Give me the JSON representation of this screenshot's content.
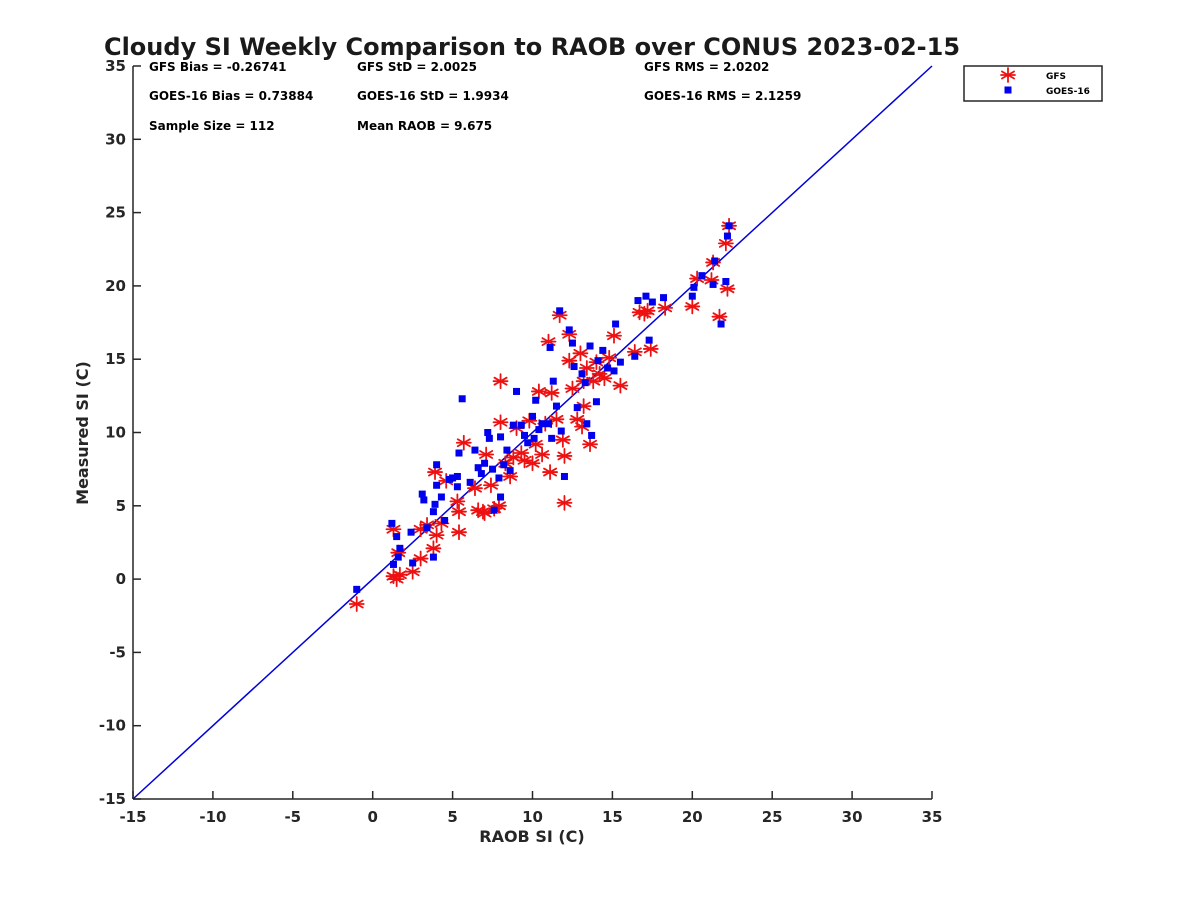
{
  "chart_data": {
    "type": "scatter",
    "title": "Cloudy SI Weekly Comparison to RAOB over CONUS 2023-02-15",
    "xlabel": "RAOB SI (C)",
    "ylabel": "Measured SI (C)",
    "xlim": [
      -15,
      35
    ],
    "ylim": [
      -15,
      35
    ],
    "xticks": [
      -15,
      -10,
      -5,
      0,
      5,
      10,
      15,
      20,
      25,
      30,
      35
    ],
    "yticks": [
      -15,
      -10,
      -5,
      0,
      5,
      10,
      15,
      20,
      25,
      30,
      35
    ],
    "grid": false,
    "legend_position": "outside top-right",
    "reference_line": {
      "x": [
        -15,
        35
      ],
      "y": [
        -15,
        35
      ],
      "color": "#0000dd"
    },
    "stats": {
      "gfs_bias": "GFS Bias = -0.26741",
      "gfs_std": "GFS StD = 2.0025",
      "gfs_rms": "GFS RMS = 2.0202",
      "goes_bias": "GOES-16 Bias = 0.73884",
      "goes_std": "GOES-16 StD = 1.9934",
      "goes_rms": "GOES-16 RMS = 2.1259",
      "sample_size": "Sample Size = 112",
      "mean_raob": "Mean RAOB = 9.675"
    },
    "series": [
      {
        "name": "GFS",
        "marker": "asterisk",
        "color": "#ee1111",
        "points": [
          [
            -1.0,
            -1.7
          ],
          [
            1.3,
            0.2
          ],
          [
            1.5,
            0.0
          ],
          [
            1.7,
            0.3
          ],
          [
            1.3,
            3.4
          ],
          [
            1.6,
            1.8
          ],
          [
            2.5,
            0.5
          ],
          [
            3.0,
            1.4
          ],
          [
            3.0,
            3.4
          ],
          [
            3.4,
            3.7
          ],
          [
            3.8,
            2.1
          ],
          [
            4.0,
            3.0
          ],
          [
            4.3,
            3.8
          ],
          [
            3.9,
            7.3
          ],
          [
            4.6,
            6.7
          ],
          [
            5.3,
            5.3
          ],
          [
            5.4,
            4.6
          ],
          [
            5.4,
            3.2
          ],
          [
            5.7,
            9.3
          ],
          [
            6.4,
            6.2
          ],
          [
            6.6,
            4.7
          ],
          [
            6.9,
            4.6
          ],
          [
            7.0,
            4.5
          ],
          [
            7.1,
            8.5
          ],
          [
            7.4,
            6.4
          ],
          [
            7.6,
            4.8
          ],
          [
            7.9,
            5.0
          ],
          [
            8.0,
            10.7
          ],
          [
            8.0,
            13.5
          ],
          [
            8.3,
            7.9
          ],
          [
            8.6,
            7.0
          ],
          [
            8.8,
            8.3
          ],
          [
            9.0,
            10.3
          ],
          [
            9.3,
            8.6
          ],
          [
            9.5,
            8.1
          ],
          [
            9.8,
            10.8
          ],
          [
            10.0,
            7.9
          ],
          [
            10.2,
            9.2
          ],
          [
            10.4,
            12.8
          ],
          [
            10.6,
            8.5
          ],
          [
            10.8,
            10.6
          ],
          [
            11.0,
            16.2
          ],
          [
            11.1,
            7.3
          ],
          [
            11.2,
            12.7
          ],
          [
            11.5,
            10.9
          ],
          [
            11.7,
            18.0
          ],
          [
            11.9,
            9.5
          ],
          [
            12.0,
            5.2
          ],
          [
            12.0,
            8.4
          ],
          [
            12.3,
            16.7
          ],
          [
            12.3,
            14.9
          ],
          [
            12.5,
            13.0
          ],
          [
            12.8,
            10.9
          ],
          [
            13.0,
            15.4
          ],
          [
            13.1,
            10.4
          ],
          [
            13.2,
            11.8
          ],
          [
            13.2,
            13.5
          ],
          [
            13.4,
            14.4
          ],
          [
            13.6,
            9.2
          ],
          [
            13.8,
            13.5
          ],
          [
            14.0,
            14.8
          ],
          [
            14.2,
            14.0
          ],
          [
            14.5,
            13.7
          ],
          [
            14.8,
            15.1
          ],
          [
            15.1,
            16.6
          ],
          [
            15.5,
            13.2
          ],
          [
            16.4,
            15.5
          ],
          [
            16.7,
            18.2
          ],
          [
            17.0,
            18.1
          ],
          [
            17.2,
            18.3
          ],
          [
            17.4,
            15.7
          ],
          [
            18.3,
            18.5
          ],
          [
            20.0,
            18.6
          ],
          [
            20.3,
            20.5
          ],
          [
            21.2,
            20.4
          ],
          [
            21.3,
            21.6
          ],
          [
            21.7,
            17.9
          ],
          [
            22.1,
            22.9
          ],
          [
            22.2,
            19.8
          ],
          [
            22.3,
            24.1
          ]
        ]
      },
      {
        "name": "GOES-16",
        "marker": "square",
        "color": "#0000ee",
        "points": [
          [
            -1.0,
            -0.7
          ],
          [
            1.2,
            3.8
          ],
          [
            1.3,
            1.0
          ],
          [
            1.5,
            2.9
          ],
          [
            1.6,
            1.5
          ],
          [
            1.7,
            2.1
          ],
          [
            2.4,
            3.2
          ],
          [
            2.5,
            1.1
          ],
          [
            3.1,
            5.8
          ],
          [
            3.2,
            5.4
          ],
          [
            3.4,
            3.5
          ],
          [
            3.8,
            1.5
          ],
          [
            3.8,
            4.6
          ],
          [
            3.9,
            5.1
          ],
          [
            4.0,
            7.8
          ],
          [
            4.0,
            6.4
          ],
          [
            4.3,
            5.6
          ],
          [
            4.5,
            4.0
          ],
          [
            4.8,
            6.8
          ],
          [
            5.0,
            6.9
          ],
          [
            5.3,
            7.0
          ],
          [
            5.3,
            6.3
          ],
          [
            5.4,
            8.6
          ],
          [
            5.6,
            12.3
          ],
          [
            6.1,
            6.6
          ],
          [
            6.4,
            8.8
          ],
          [
            6.6,
            7.6
          ],
          [
            6.8,
            7.2
          ],
          [
            7.0,
            7.9
          ],
          [
            7.2,
            10.0
          ],
          [
            7.3,
            9.6
          ],
          [
            7.5,
            7.5
          ],
          [
            7.6,
            4.7
          ],
          [
            7.9,
            6.9
          ],
          [
            8.0,
            9.7
          ],
          [
            8.0,
            5.6
          ],
          [
            8.2,
            7.8
          ],
          [
            8.4,
            8.8
          ],
          [
            8.6,
            7.4
          ],
          [
            8.8,
            10.5
          ],
          [
            9.0,
            12.8
          ],
          [
            9.3,
            10.5
          ],
          [
            9.5,
            9.8
          ],
          [
            9.7,
            9.3
          ],
          [
            10.0,
            11.1
          ],
          [
            10.1,
            9.6
          ],
          [
            10.2,
            12.2
          ],
          [
            10.4,
            10.2
          ],
          [
            10.6,
            10.6
          ],
          [
            11.0,
            10.6
          ],
          [
            11.1,
            15.8
          ],
          [
            11.2,
            9.6
          ],
          [
            11.3,
            13.5
          ],
          [
            11.5,
            11.8
          ],
          [
            11.7,
            18.3
          ],
          [
            11.8,
            10.1
          ],
          [
            12.0,
            7.0
          ],
          [
            12.3,
            17.0
          ],
          [
            12.5,
            16.1
          ],
          [
            12.6,
            14.5
          ],
          [
            12.8,
            11.7
          ],
          [
            13.1,
            14.0
          ],
          [
            13.3,
            13.4
          ],
          [
            13.4,
            10.6
          ],
          [
            13.6,
            15.9
          ],
          [
            13.7,
            9.8
          ],
          [
            14.0,
            12.1
          ],
          [
            14.1,
            14.9
          ],
          [
            14.4,
            15.6
          ],
          [
            14.7,
            14.4
          ],
          [
            15.1,
            14.2
          ],
          [
            15.2,
            17.4
          ],
          [
            15.5,
            14.8
          ],
          [
            16.4,
            15.2
          ],
          [
            16.6,
            19.0
          ],
          [
            17.1,
            19.3
          ],
          [
            17.3,
            16.3
          ],
          [
            17.5,
            18.9
          ],
          [
            18.2,
            19.2
          ],
          [
            20.0,
            19.3
          ],
          [
            20.1,
            19.9
          ],
          [
            20.6,
            20.7
          ],
          [
            21.3,
            20.1
          ],
          [
            21.4,
            21.7
          ],
          [
            21.8,
            17.4
          ],
          [
            22.1,
            20.3
          ],
          [
            22.2,
            23.4
          ],
          [
            22.3,
            24.1
          ]
        ]
      }
    ]
  }
}
